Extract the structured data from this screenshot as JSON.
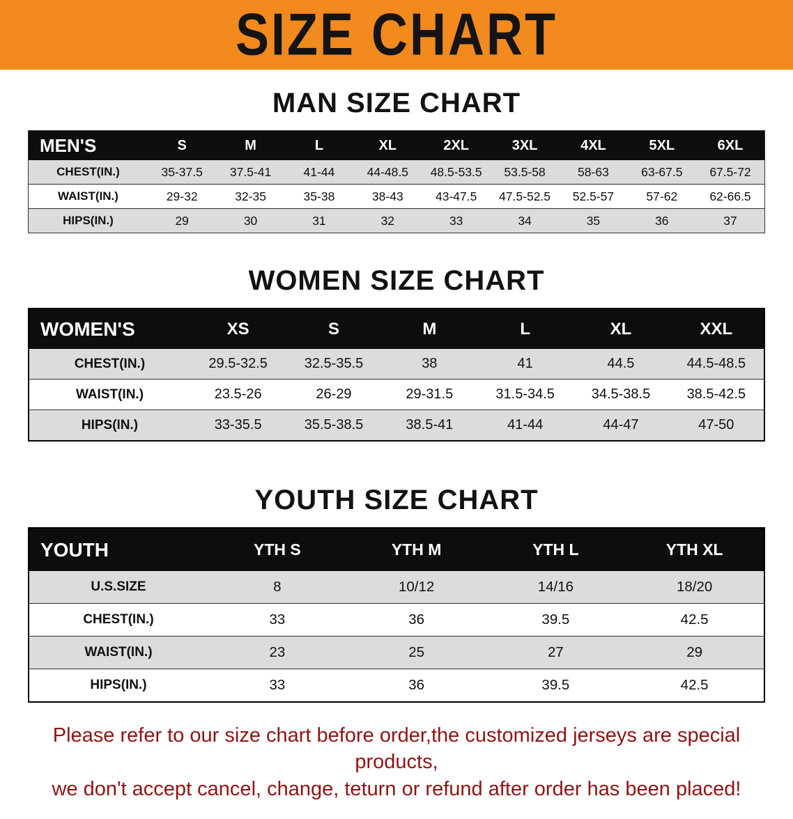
{
  "banner": {
    "title": "SIZE CHART",
    "bg_color": "#F28A1E",
    "text_color": "#141414"
  },
  "sections": {
    "man": {
      "heading": "MAN SIZE CHART",
      "table": {
        "header": [
          "MEN'S",
          "S",
          "M",
          "L",
          "XL",
          "2XL",
          "3XL",
          "4XL",
          "5XL",
          "6XL"
        ],
        "rows": [
          [
            "CHEST(IN.)",
            "35-37.5",
            "37.5-41",
            "41-44",
            "44-48.5",
            "48.5-53.5",
            "53.5-58",
            "58-63",
            "63-67.5",
            "67.5-72"
          ],
          [
            "WAIST(IN.)",
            "29-32",
            "32-35",
            "35-38",
            "38-43",
            "43-47.5",
            "47.5-52.5",
            "52.5-57",
            "57-62",
            "62-66.5"
          ],
          [
            "HIPS(IN.)",
            "29",
            "30",
            "31",
            "32",
            "33",
            "34",
            "35",
            "36",
            "37"
          ]
        ]
      }
    },
    "women": {
      "heading": "WOMEN SIZE CHART",
      "table": {
        "header": [
          "WOMEN'S",
          "XS",
          "S",
          "M",
          "L",
          "XL",
          "XXL"
        ],
        "rows": [
          [
            "CHEST(IN.)",
            "29.5-32.5",
            "32.5-35.5",
            "38",
            "41",
            "44.5",
            "44.5-48.5"
          ],
          [
            "WAIST(IN.)",
            "23.5-26",
            "26-29",
            "29-31.5",
            "31.5-34.5",
            "34.5-38.5",
            "38.5-42.5"
          ],
          [
            "HIPS(IN.)",
            "33-35.5",
            "35.5-38.5",
            "38.5-41",
            "41-44",
            "44-47",
            "47-50"
          ]
        ]
      }
    },
    "youth": {
      "heading": "YOUTH SIZE CHART",
      "table": {
        "header": [
          "YOUTH",
          "YTH S",
          "YTH M",
          "YTH L",
          "YTH XL"
        ],
        "rows": [
          [
            "U.S.SIZE",
            "8",
            "10/12",
            "14/16",
            "18/20"
          ],
          [
            "CHEST(IN.)",
            "33",
            "36",
            "39.5",
            "42.5"
          ],
          [
            "WAIST(IN.)",
            "23",
            "25",
            "27",
            "29"
          ],
          [
            "HIPS(IN.)",
            "33",
            "36",
            "39.5",
            "42.5"
          ]
        ]
      }
    }
  },
  "disclaimer": {
    "line1": "Please refer to our size chart before order,the customized jerseys are special products,",
    "line2": "we don't accept cancel, change, teturn or refund after order has been placed!",
    "text_color": "#8E1414"
  },
  "colors": {
    "table_header_bg": "#0d0d0d",
    "table_header_text": "#ffffff",
    "row_stripe": "#dcdcdc"
  }
}
